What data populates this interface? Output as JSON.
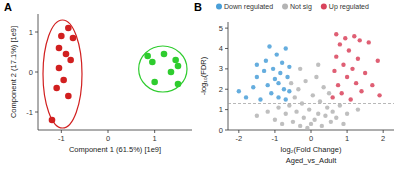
{
  "chart_data": [
    {
      "type": "pca",
      "panel_label": "A",
      "xlabel": "Component 1 (61.5%) [1e9]",
      "ylabel": "Component 2 (17.1%) [1e9]",
      "xlim": [
        -1.5,
        1.8
      ],
      "ylim": [
        -1.45,
        1.45
      ],
      "xticks": [
        -1,
        0,
        1
      ],
      "yticks": [
        -1,
        0,
        1
      ],
      "grid": false,
      "marker": "circle",
      "series": [
        {
          "color": "#d11f1f",
          "x": [
            -0.85,
            -1.0,
            -0.75,
            -1.05,
            -0.9,
            -0.8,
            -1.05,
            -0.95,
            -1.1,
            -0.85,
            -1.2
          ],
          "values": [
            1.1,
            0.9,
            0.85,
            0.6,
            0.45,
            0.3,
            0.1,
            -0.2,
            -0.4,
            -0.6,
            -1.2
          ]
        },
        {
          "color": "#2ecc2e",
          "x": [
            0.85,
            0.95,
            1.2,
            1.45,
            1.5,
            1.35,
            1.0,
            1.5
          ],
          "values": [
            0.4,
            0.25,
            0.45,
            0.3,
            0.15,
            0.0,
            -0.25,
            -0.3
          ]
        }
      ]
    },
    {
      "type": "scatter",
      "panel_label": "B",
      "xlabel": "log₂(Fold Change)",
      "subtitle": "Aged_vs_Adult",
      "ylabel": "-log₁₀(FDR)",
      "xlim": [
        -2.3,
        2.3
      ],
      "ylim": [
        0,
        5.3
      ],
      "xticks": [
        -2,
        -1,
        0,
        1,
        2
      ],
      "yticks": [
        0,
        1,
        2,
        3,
        4,
        5
      ],
      "grid": false,
      "legend": "top",
      "marker": "circle",
      "reference_lines": {
        "y": [
          1.3
        ]
      },
      "series": [
        {
          "name": "Down regulated",
          "color": "#4a9fd8",
          "x": [
            -2.0,
            -1.8,
            -1.6,
            -1.5,
            -1.4,
            -1.3,
            -1.25,
            -1.2,
            -1.1,
            -1.05,
            -1.0,
            -0.95,
            -0.9,
            -0.85,
            -0.8,
            -0.75,
            -0.7,
            -0.7,
            -0.65,
            -0.6,
            -0.6,
            -1.5,
            -1.15,
            -0.9
          ],
          "values": [
            1.9,
            1.6,
            2.1,
            2.6,
            1.5,
            2.9,
            3.4,
            2.2,
            1.8,
            3.0,
            2.5,
            3.7,
            1.6,
            2.8,
            3.3,
            2.0,
            4.0,
            1.5,
            2.6,
            3.1,
            1.9,
            3.2,
            4.1,
            2.3
          ]
        },
        {
          "name": "Not sig",
          "color": "#b4b4b4",
          "x": [
            -1.2,
            -1.0,
            -0.9,
            -0.8,
            -0.7,
            -0.6,
            -0.5,
            -0.45,
            -0.4,
            -0.35,
            -0.3,
            -0.25,
            -0.2,
            -0.15,
            -0.1,
            -0.05,
            0.0,
            0.05,
            0.1,
            0.15,
            0.2,
            0.25,
            0.3,
            0.35,
            0.4,
            0.45,
            0.5,
            0.55,
            0.6,
            0.7,
            0.8,
            0.9,
            1.0,
            1.3,
            -1.5,
            -0.3,
            0.2,
            -0.55
          ],
          "values": [
            0.9,
            0.5,
            1.1,
            0.3,
            0.8,
            1.2,
            0.4,
            1.6,
            0.9,
            2.0,
            0.2,
            1.3,
            0.6,
            2.4,
            0.1,
            1.0,
            0.3,
            1.7,
            0.5,
            2.6,
            0.8,
            1.4,
            0.2,
            2.1,
            0.7,
            1.1,
            1.8,
            0.4,
            0.9,
            0.6,
            1.2,
            0.3,
            0.8,
            1.0,
            0.7,
            3.0,
            3.2,
            2.3
          ]
        },
        {
          "name": "Up regulated",
          "color": "#d9435c",
          "x": [
            0.6,
            0.65,
            0.7,
            0.75,
            0.8,
            0.85,
            0.9,
            0.95,
            1.0,
            1.05,
            1.1,
            1.15,
            1.2,
            1.25,
            1.3,
            1.4,
            1.5,
            1.6,
            1.7,
            1.85,
            1.9,
            0.7,
            1.35
          ],
          "values": [
            1.6,
            2.9,
            3.6,
            2.2,
            4.2,
            1.8,
            3.2,
            4.5,
            2.6,
            3.9,
            1.5,
            3.0,
            4.6,
            2.3,
            3.5,
            1.9,
            2.8,
            4.3,
            2.2,
            3.4,
            1.7,
            4.7,
            4.4
          ]
        }
      ]
    }
  ]
}
